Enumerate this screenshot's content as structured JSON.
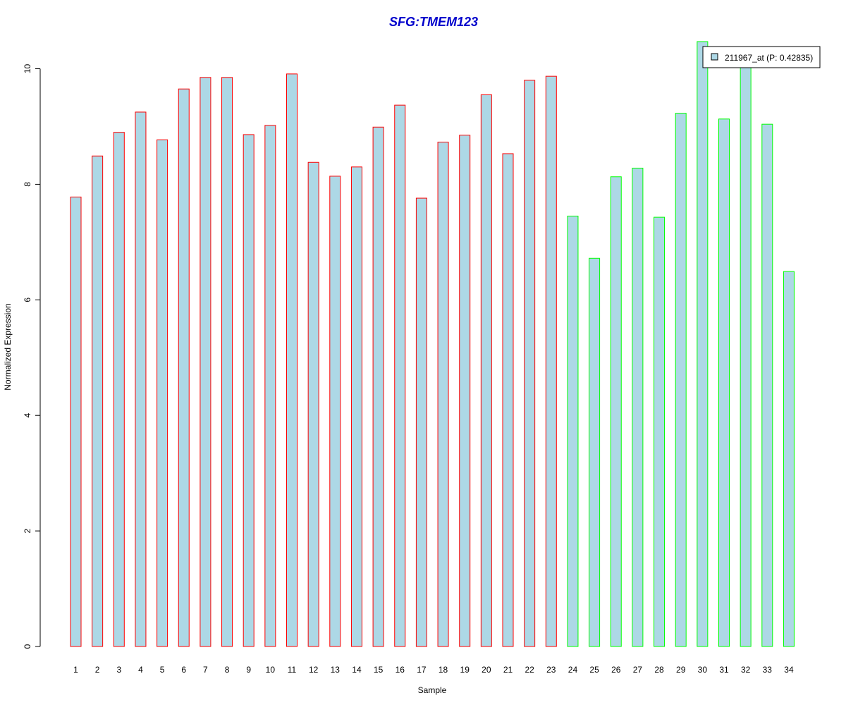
{
  "chart_data": {
    "type": "bar",
    "title": "SFG:TMEM123",
    "xlabel": "Sample",
    "ylabel": "Normalized Expression",
    "ylim": [
      0,
      10.5
    ],
    "yticks": [
      0,
      2,
      4,
      6,
      8,
      10
    ],
    "categories": [
      "1",
      "2",
      "3",
      "4",
      "5",
      "6",
      "7",
      "8",
      "9",
      "10",
      "11",
      "12",
      "13",
      "14",
      "15",
      "16",
      "17",
      "18",
      "19",
      "20",
      "21",
      "22",
      "23",
      "24",
      "25",
      "26",
      "27",
      "28",
      "29",
      "30",
      "31",
      "32",
      "33",
      "34"
    ],
    "series": [
      {
        "name": "211967_at (P: 0.42835)",
        "values": [
          7.78,
          8.49,
          8.9,
          9.25,
          8.77,
          9.65,
          9.85,
          9.85,
          8.86,
          9.02,
          9.91,
          8.38,
          8.14,
          8.3,
          8.99,
          9.37,
          7.76,
          8.73,
          8.85,
          9.55,
          8.53,
          9.8,
          9.87,
          7.45,
          6.72,
          8.13,
          8.28,
          7.43,
          9.23,
          10.47,
          9.13,
          10.15,
          9.04,
          6.49
        ]
      }
    ],
    "bar_fill": "#add8e6",
    "group_colors": {
      "group1": "#ff0000",
      "group2": "#00ff00"
    },
    "group_assignment": [
      1,
      1,
      1,
      1,
      1,
      1,
      1,
      1,
      1,
      1,
      1,
      1,
      1,
      1,
      1,
      1,
      1,
      1,
      1,
      1,
      1,
      1,
      1,
      2,
      2,
      2,
      2,
      2,
      2,
      2,
      2,
      2,
      2,
      2
    ],
    "title_color": "#0000cc",
    "legend": {
      "position": "top-right",
      "label": "211967_at (P: 0.42835)"
    }
  }
}
